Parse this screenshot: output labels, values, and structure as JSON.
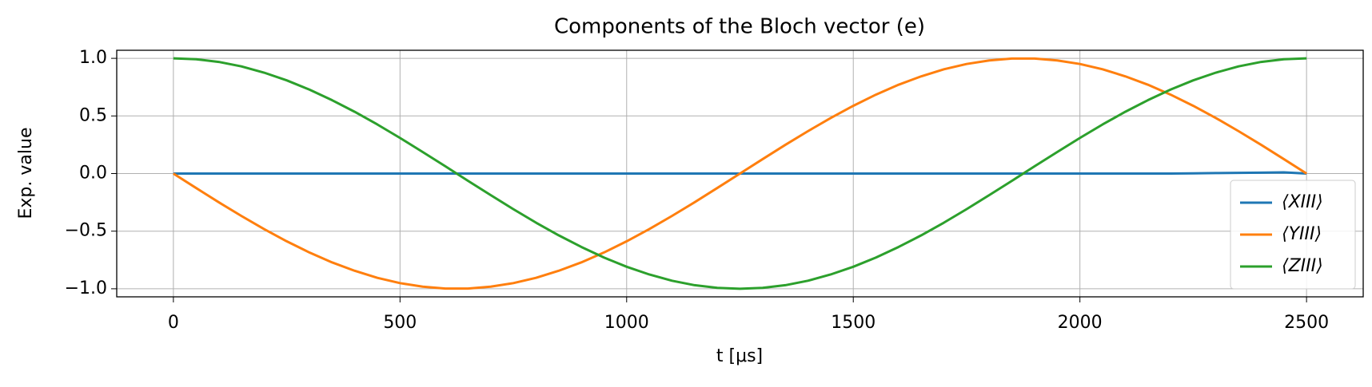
{
  "chart_data": {
    "type": "line",
    "title": "Components of the Bloch vector (e)",
    "xlabel": "t [μs]",
    "ylabel": "Exp. value",
    "x": [
      0,
      50,
      100,
      150,
      200,
      250,
      300,
      350,
      400,
      450,
      500,
      550,
      600,
      650,
      700,
      750,
      800,
      850,
      900,
      950,
      1000,
      1050,
      1100,
      1150,
      1200,
      1250,
      1300,
      1350,
      1400,
      1450,
      1500,
      1550,
      1600,
      1650,
      1700,
      1750,
      1800,
      1850,
      1900,
      1950,
      2000,
      2050,
      2100,
      2150,
      2200,
      2250,
      2300,
      2350,
      2400,
      2450,
      2500
    ],
    "series": [
      {
        "name": "⟨XIII⟩",
        "color": "#1f77b4",
        "values": [
          0,
          0,
          0,
          0,
          0,
          0,
          0,
          0,
          0,
          0,
          0,
          0,
          0,
          0,
          0,
          0,
          0,
          0,
          0,
          0,
          0,
          0,
          0,
          0,
          0,
          0,
          0,
          0,
          0,
          0,
          0,
          0,
          0,
          0,
          0,
          0,
          0,
          0,
          0,
          0,
          0,
          0,
          0,
          0,
          0,
          0.002,
          0.004,
          0.006,
          0.008,
          0.01,
          0
        ]
      },
      {
        "name": "⟨YIII⟩",
        "color": "#ff7f0e",
        "values": [
          0,
          -0.125,
          -0.249,
          -0.368,
          -0.482,
          -0.588,
          -0.685,
          -0.771,
          -0.844,
          -0.905,
          -0.951,
          -0.982,
          -0.998,
          -0.998,
          -0.982,
          -0.951,
          -0.905,
          -0.844,
          -0.771,
          -0.685,
          -0.588,
          -0.482,
          -0.368,
          -0.249,
          -0.125,
          0,
          0.125,
          0.249,
          0.368,
          0.482,
          0.588,
          0.685,
          0.771,
          0.844,
          0.905,
          0.951,
          0.982,
          0.998,
          0.998,
          0.982,
          0.951,
          0.905,
          0.844,
          0.771,
          0.685,
          0.588,
          0.482,
          0.368,
          0.249,
          0.125,
          0
        ]
      },
      {
        "name": "⟨ZIII⟩",
        "color": "#2ca02c",
        "values": [
          1,
          0.992,
          0.969,
          0.93,
          0.876,
          0.809,
          0.729,
          0.637,
          0.536,
          0.426,
          0.309,
          0.187,
          0.063,
          -0.063,
          -0.187,
          -0.309,
          -0.426,
          -0.536,
          -0.637,
          -0.729,
          -0.809,
          -0.876,
          -0.93,
          -0.969,
          -0.992,
          -1,
          -0.992,
          -0.969,
          -0.93,
          -0.876,
          -0.809,
          -0.729,
          -0.637,
          -0.536,
          -0.426,
          -0.309,
          -0.187,
          -0.063,
          0.063,
          0.187,
          0.309,
          0.426,
          0.536,
          0.637,
          0.729,
          0.809,
          0.876,
          0.93,
          0.969,
          0.992,
          1
        ]
      }
    ],
    "xlim": [
      -125,
      2625
    ],
    "xticks": [
      0,
      500,
      1000,
      1500,
      2000,
      2500
    ],
    "ylim": [
      -1.07,
      1.07
    ],
    "yticks": [
      {
        "value": -1,
        "label": "−1.0"
      },
      {
        "value": -0.5,
        "label": "−0.5"
      },
      {
        "value": 0,
        "label": "0.0"
      },
      {
        "value": 0.5,
        "label": "0.5"
      },
      {
        "value": 1,
        "label": "1.0"
      }
    ],
    "grid": true,
    "legend": "lower right"
  }
}
